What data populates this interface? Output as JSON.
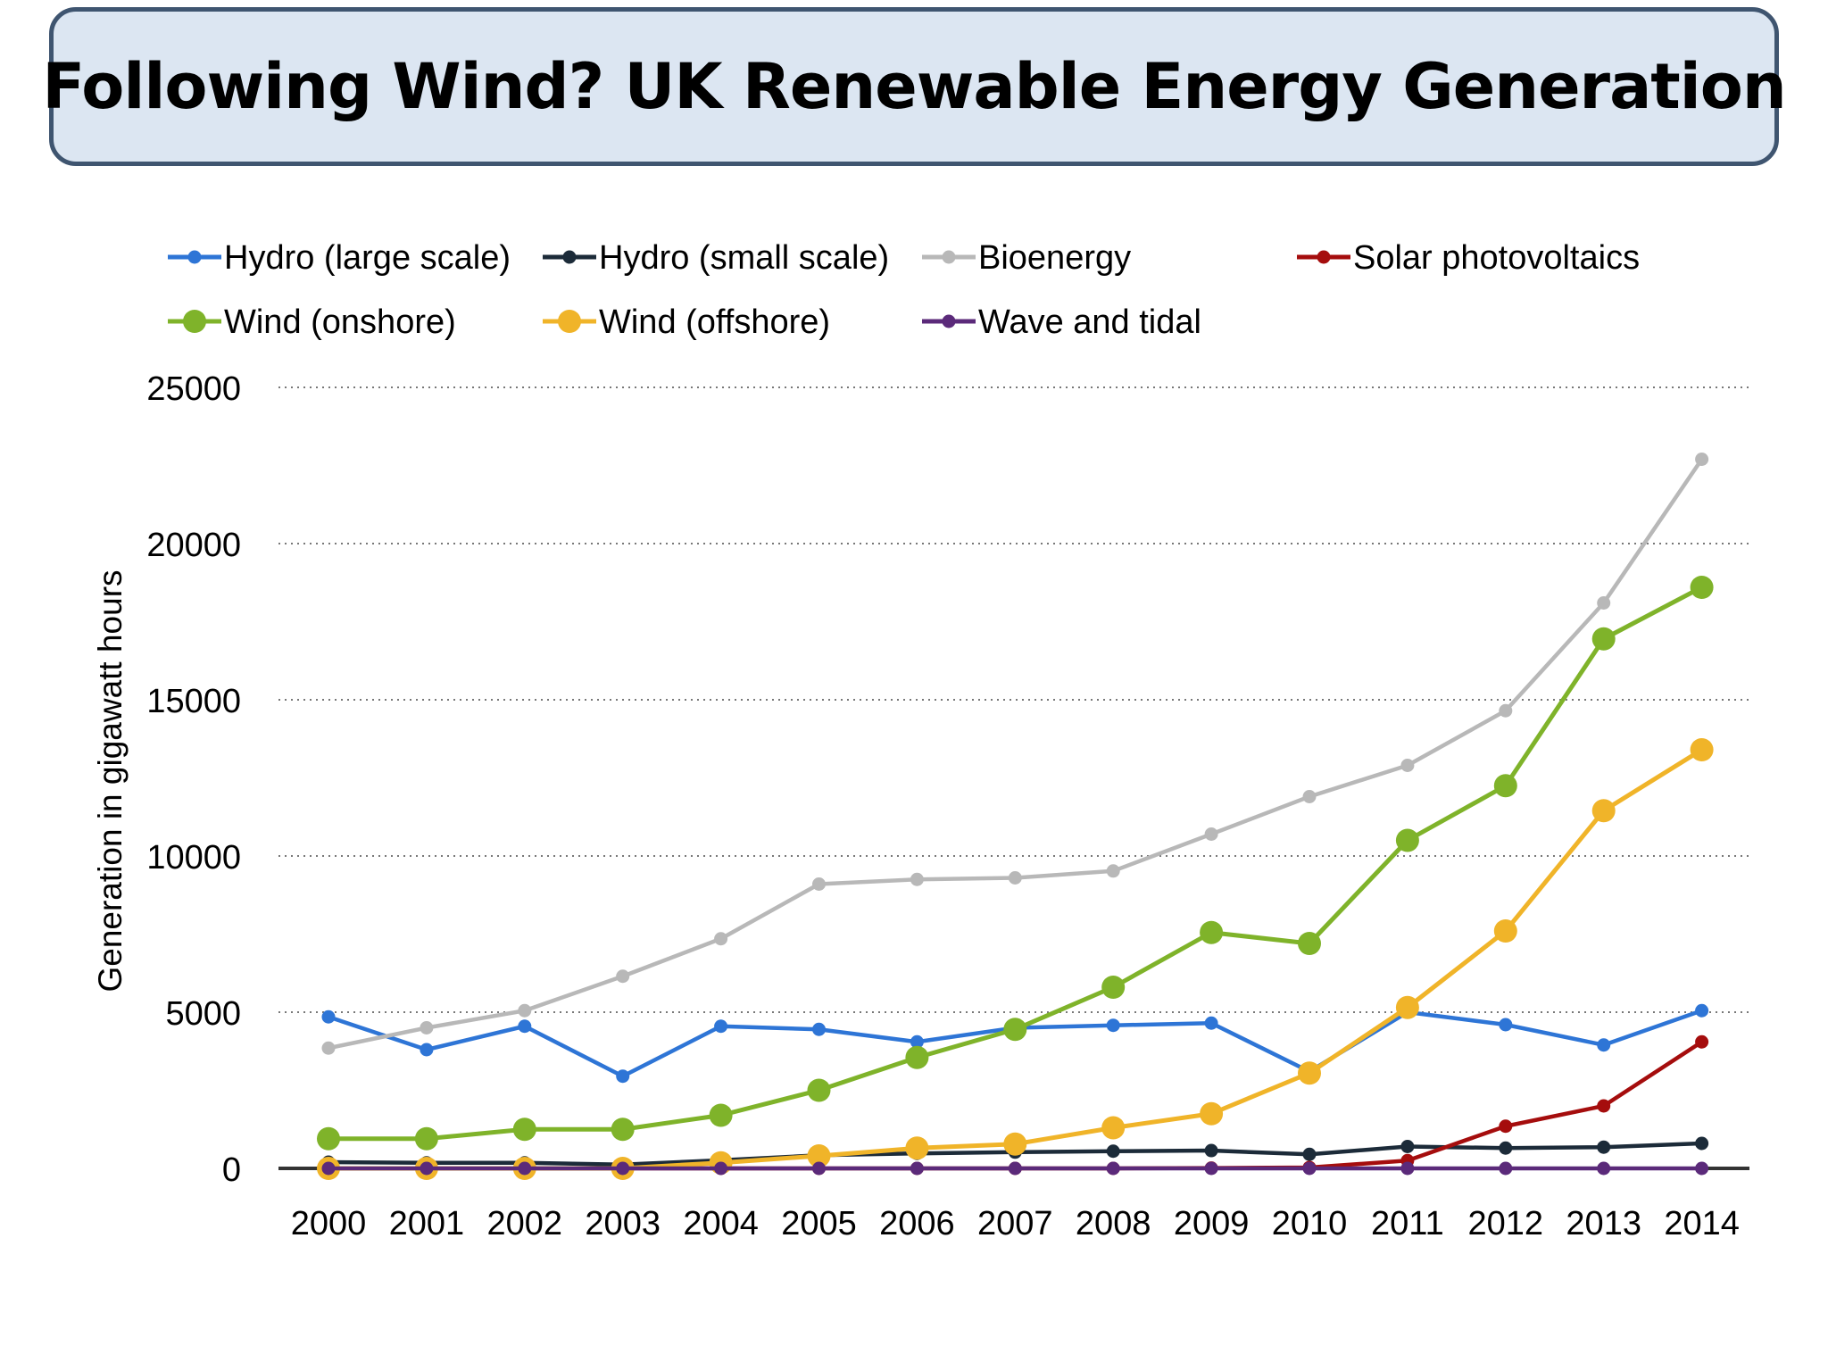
{
  "title": "Following Wind? UK Renewable Energy Generation",
  "chart_data": {
    "type": "line",
    "title": "Following Wind? UK Renewable Energy Generation",
    "xlabel": "",
    "ylabel": "Generation in gigawatt hours",
    "ylim": [
      0,
      25000
    ],
    "yticks": [
      "0",
      "5000",
      "10000",
      "15000",
      "20000",
      "25000"
    ],
    "categories": [
      "2000",
      "2001",
      "2002",
      "2003",
      "2004",
      "2005",
      "2006",
      "2007",
      "2008",
      "2009",
      "2010",
      "2011",
      "2012",
      "2013",
      "2014"
    ],
    "grid": "horizontal dotted",
    "legend_position": "top",
    "series": [
      {
        "name": "Hydro (large scale)",
        "color": "#2e75d6",
        "marker": "small",
        "values": [
          4850,
          3800,
          4550,
          2950,
          4550,
          4450,
          4050,
          4500,
          4580,
          4650,
          3100,
          5000,
          4600,
          3950,
          5050
        ]
      },
      {
        "name": "Hydro (small scale)",
        "color": "#1c2b39",
        "marker": "small",
        "values": [
          200,
          180,
          180,
          120,
          260,
          420,
          480,
          520,
          550,
          570,
          450,
          700,
          650,
          680,
          800
        ]
      },
      {
        "name": "Bioenergy",
        "color": "#b8b8b8",
        "marker": "small",
        "values": [
          3850,
          4500,
          5050,
          6150,
          7350,
          9100,
          9250,
          9300,
          9520,
          10700,
          11900,
          12900,
          14650,
          18100,
          22700
        ]
      },
      {
        "name": "Solar photovoltaics",
        "color": "#a50d0d",
        "marker": "small",
        "values": [
          0,
          0,
          0,
          0,
          0,
          0,
          0,
          0,
          0,
          10,
          30,
          250,
          1350,
          2000,
          4050
        ]
      },
      {
        "name": "Wind (onshore)",
        "color": "#7fb32a",
        "marker": "large",
        "values": [
          950,
          950,
          1250,
          1250,
          1700,
          2500,
          3550,
          4450,
          5800,
          7550,
          7200,
          10500,
          12250,
          16950,
          18600
        ]
      },
      {
        "name": "Wind (offshore)",
        "color": "#f0b429",
        "marker": "large",
        "values": [
          0,
          0,
          0,
          0,
          180,
          400,
          650,
          780,
          1300,
          1750,
          3050,
          5150,
          7600,
          11450,
          13400
        ]
      },
      {
        "name": "Wave and tidal",
        "color": "#5b2a7a",
        "marker": "small",
        "values": [
          0,
          0,
          0,
          0,
          0,
          0,
          0,
          0,
          0,
          0,
          0,
          0,
          0,
          0,
          0
        ]
      }
    ]
  }
}
